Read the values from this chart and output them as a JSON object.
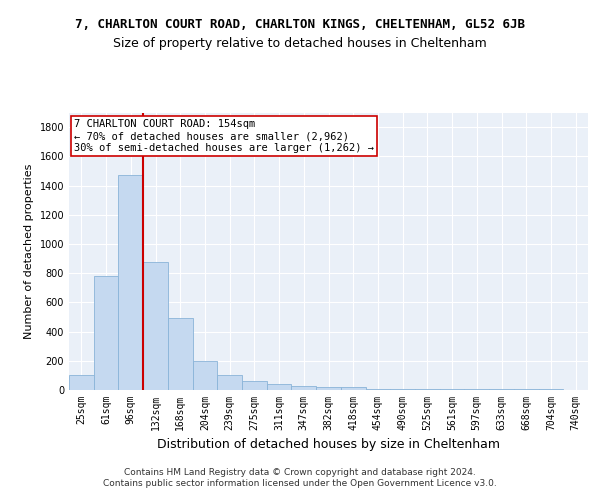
{
  "title_line1": "7, CHARLTON COURT ROAD, CHARLTON KINGS, CHELTENHAM, GL52 6JB",
  "title_line2": "Size of property relative to detached houses in Cheltenham",
  "xlabel": "Distribution of detached houses by size in Cheltenham",
  "ylabel": "Number of detached properties",
  "footer": "Contains HM Land Registry data © Crown copyright and database right 2024.\nContains public sector information licensed under the Open Government Licence v3.0.",
  "categories": [
    "25sqm",
    "61sqm",
    "96sqm",
    "132sqm",
    "168sqm",
    "204sqm",
    "239sqm",
    "275sqm",
    "311sqm",
    "347sqm",
    "382sqm",
    "418sqm",
    "454sqm",
    "490sqm",
    "525sqm",
    "561sqm",
    "597sqm",
    "633sqm",
    "668sqm",
    "704sqm",
    "740sqm"
  ],
  "values": [
    100,
    780,
    1470,
    875,
    490,
    200,
    100,
    65,
    40,
    30,
    20,
    18,
    10,
    7,
    7,
    5,
    5,
    5,
    4,
    4,
    3
  ],
  "bar_color": "#c5d9f0",
  "bar_edge_color": "#8ab4d8",
  "vline_x_index": 3,
  "vline_color": "#cc0000",
  "annotation_text": "7 CHARLTON COURT ROAD: 154sqm\n← 70% of detached houses are smaller (2,962)\n30% of semi-detached houses are larger (1,262) →",
  "annotation_box_color": "#ffffff",
  "annotation_box_edge": "#cc0000",
  "ylim": [
    0,
    1900
  ],
  "yticks": [
    0,
    200,
    400,
    600,
    800,
    1000,
    1200,
    1400,
    1600,
    1800
  ],
  "bg_color": "#eaf0f8",
  "grid_color": "#ffffff",
  "title1_fontsize": 9,
  "title2_fontsize": 9,
  "ylabel_fontsize": 8,
  "xlabel_fontsize": 9,
  "tick_fontsize": 7,
  "annotation_fontsize": 7.5,
  "footer_fontsize": 6.5
}
